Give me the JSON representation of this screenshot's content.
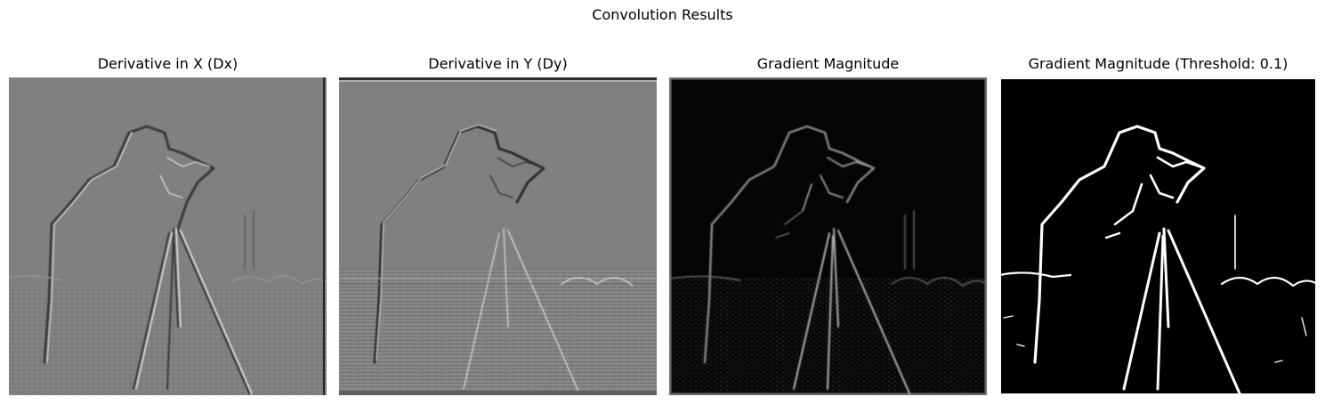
{
  "figure": {
    "title": "Convolution Results"
  },
  "panels": [
    {
      "title": "Derivative in X (Dx)",
      "kind": "dx",
      "background": "#808080"
    },
    {
      "title": "Derivative in Y (Dy)",
      "kind": "dy",
      "background": "#808080"
    },
    {
      "title": "Gradient Magnitude",
      "kind": "magnitude",
      "background": "#050505"
    },
    {
      "title": "Gradient Magnitude (Threshold: 0.1)",
      "kind": "threshold",
      "background": "#000000"
    }
  ],
  "scene": {
    "subject": "photographer with camera on tripod",
    "background": "field with distant buildings and towers"
  }
}
